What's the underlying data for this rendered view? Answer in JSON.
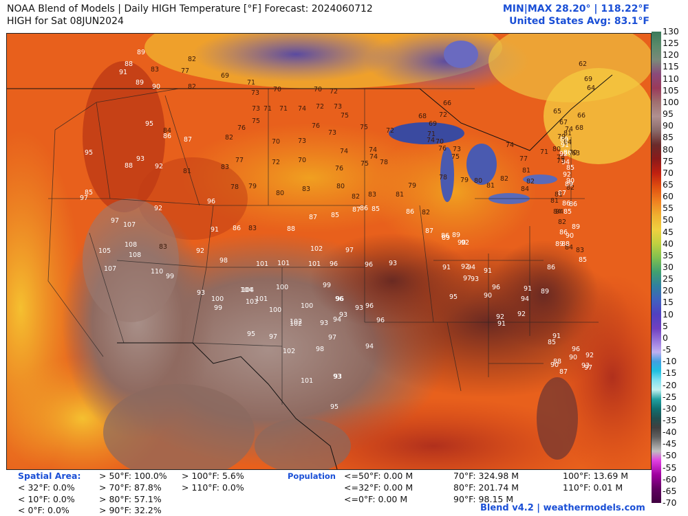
{
  "header": {
    "title": "NOAA Blend of Models | Daily HIGH Temperature [°F] Forecast: 2024060712",
    "subtitle": "HIGH for Sat 08JUN2024",
    "minmax": "MIN|MAX 28.20°  |  118.22°F",
    "us_avg": "United States Avg: 83.1°F"
  },
  "scale": {
    "ticks": [
      "130",
      "125",
      "120",
      "115",
      "110",
      "105",
      "100",
      "95",
      "90",
      "85",
      "80",
      "75",
      "70",
      "65",
      "60",
      "55",
      "50",
      "45",
      "40",
      "35",
      "30",
      "25",
      "20",
      "15",
      "10",
      "5",
      "0",
      "-5",
      "-10",
      "-15",
      "-20",
      "-25",
      "-30",
      "-35",
      "-40",
      "-45",
      "-50",
      "-55",
      "-60",
      "-65",
      "-70"
    ]
  },
  "spatial": {
    "label": "Spatial Area:",
    "col1": [
      "< 32°F: 0.0%",
      "< 10°F: 0.0%",
      "< 0°F: 0.0%"
    ],
    "col2": [
      "> 50°F: 100.0%",
      "> 70°F: 87.8%",
      "> 80°F: 57.1%",
      "> 90°F: 32.2%"
    ],
    "col3": [
      "> 100°F: 5.6%",
      "> 110°F: 0.0%"
    ]
  },
  "population": {
    "label": "Population",
    "col1": [
      "<=50°F: 0.00 M",
      "<=32°F: 0.00 M",
      "<=0°F: 0.00 M"
    ],
    "col2": [
      "70°F: 324.98 M",
      "80°F: 201.74 M",
      "90°F: 98.15 M"
    ],
    "col3": [
      "100°F: 13.69 M",
      "110°F: 0.01 M"
    ]
  },
  "footer": "Blend v4.2 | weathermodels.com",
  "map_points": [
    {
      "v": "89"
    },
    {
      "v": "88"
    },
    {
      "v": "83"
    },
    {
      "v": "77"
    },
    {
      "v": "82"
    },
    {
      "v": "91"
    },
    {
      "v": "89"
    },
    {
      "v": "90"
    },
    {
      "v": "82"
    },
    {
      "v": "69"
    },
    {
      "v": "71"
    },
    {
      "v": "70"
    },
    {
      "v": "70"
    },
    {
      "v": "72"
    },
    {
      "v": "71"
    },
    {
      "v": "73"
    },
    {
      "v": "73"
    },
    {
      "v": "71"
    },
    {
      "v": "74"
    },
    {
      "v": "72"
    },
    {
      "v": "73"
    },
    {
      "v": "75"
    },
    {
      "v": "95"
    },
    {
      "v": "84"
    },
    {
      "v": "87"
    },
    {
      "v": "86"
    },
    {
      "v": "76"
    },
    {
      "v": "82"
    },
    {
      "v": "75"
    },
    {
      "v": "76"
    },
    {
      "v": "73"
    },
    {
      "v": "70"
    },
    {
      "v": "73"
    },
    {
      "v": "74"
    },
    {
      "v": "75"
    },
    {
      "v": "74"
    },
    {
      "v": "72"
    },
    {
      "v": "95"
    },
    {
      "v": "93"
    },
    {
      "v": "92"
    },
    {
      "v": "88"
    },
    {
      "v": "81"
    },
    {
      "v": "83"
    },
    {
      "v": "77"
    },
    {
      "v": "72"
    },
    {
      "v": "70"
    },
    {
      "v": "74"
    },
    {
      "v": "76"
    },
    {
      "v": "75"
    },
    {
      "v": "78"
    },
    {
      "v": "97"
    },
    {
      "v": "97"
    },
    {
      "v": "85"
    },
    {
      "v": "92"
    },
    {
      "v": "96"
    },
    {
      "v": "78"
    },
    {
      "v": "79"
    },
    {
      "v": "80"
    },
    {
      "v": "83"
    },
    {
      "v": "80"
    },
    {
      "v": "82"
    },
    {
      "v": "83"
    },
    {
      "v": "81"
    },
    {
      "v": "79"
    },
    {
      "v": "107"
    },
    {
      "v": "108"
    },
    {
      "v": "83"
    },
    {
      "v": "91"
    },
    {
      "v": "86"
    },
    {
      "v": "83"
    },
    {
      "v": "88"
    },
    {
      "v": "87"
    },
    {
      "v": "85"
    },
    {
      "v": "86"
    },
    {
      "v": "105"
    },
    {
      "v": "107"
    },
    {
      "v": "108"
    },
    {
      "v": "110"
    },
    {
      "v": "99"
    },
    {
      "v": "92"
    },
    {
      "v": "98"
    },
    {
      "v": "101"
    },
    {
      "v": "101"
    },
    {
      "v": "101"
    },
    {
      "v": "96"
    },
    {
      "v": "102"
    },
    {
      "v": "97"
    },
    {
      "v": "96"
    },
    {
      "v": "93"
    },
    {
      "v": "104"
    },
    {
      "v": "93"
    },
    {
      "v": "100"
    },
    {
      "v": "104"
    },
    {
      "v": "100"
    },
    {
      "v": "99"
    },
    {
      "v": "93"
    },
    {
      "v": "93"
    },
    {
      "v": "96"
    },
    {
      "v": "99"
    },
    {
      "v": "103"
    },
    {
      "v": "101"
    },
    {
      "v": "100"
    },
    {
      "v": "96"
    },
    {
      "v": "93"
    },
    {
      "v": "96"
    },
    {
      "v": "102"
    },
    {
      "v": "100"
    },
    {
      "v": "102"
    },
    {
      "v": "94"
    },
    {
      "v": "96"
    },
    {
      "v": "95"
    },
    {
      "v": "97"
    },
    {
      "v": "102"
    },
    {
      "v": "97"
    },
    {
      "v": "98"
    },
    {
      "v": "94"
    },
    {
      "v": "93"
    },
    {
      "v": "101"
    },
    {
      "v": "93"
    },
    {
      "v": "95"
    },
    {
      "v": "87"
    },
    {
      "v": "85"
    },
    {
      "v": "86"
    },
    {
      "v": "82"
    },
    {
      "v": "87"
    },
    {
      "v": "86"
    },
    {
      "v": "89"
    },
    {
      "v": "90"
    },
    {
      "v": "89"
    },
    {
      "v": "92"
    },
    {
      "v": "91"
    },
    {
      "v": "92"
    },
    {
      "v": "91"
    },
    {
      "v": "94"
    },
    {
      "v": "93"
    },
    {
      "v": "95"
    },
    {
      "v": "90"
    },
    {
      "v": "96"
    },
    {
      "v": "97"
    },
    {
      "v": "94"
    },
    {
      "v": "92"
    },
    {
      "v": "91"
    },
    {
      "v": "92"
    },
    {
      "v": "91"
    },
    {
      "v": "89"
    },
    {
      "v": "86"
    },
    {
      "v": "84"
    },
    {
      "v": "89"
    },
    {
      "v": "90"
    },
    {
      "v": "89"
    },
    {
      "v": "86"
    },
    {
      "v": "84"
    },
    {
      "v": "81"
    },
    {
      "v": "82"
    },
    {
      "v": "85"
    },
    {
      "v": "86"
    },
    {
      "v": "84"
    },
    {
      "v": "81"
    },
    {
      "v": "80"
    },
    {
      "v": "78"
    },
    {
      "v": "82"
    },
    {
      "v": "85"
    },
    {
      "v": "86"
    },
    {
      "v": "87"
    },
    {
      "v": "89"
    },
    {
      "v": "90"
    },
    {
      "v": "92"
    },
    {
      "v": "94"
    },
    {
      "v": "92"
    },
    {
      "v": "91"
    },
    {
      "v": "89"
    },
    {
      "v": "66"
    },
    {
      "v": "68"
    },
    {
      "v": "72"
    },
    {
      "v": "69"
    },
    {
      "v": "71"
    },
    {
      "v": "74"
    },
    {
      "v": "70"
    },
    {
      "v": "76"
    },
    {
      "v": "73"
    },
    {
      "v": "75"
    },
    {
      "v": "78"
    },
    {
      "v": "79"
    },
    {
      "v": "80"
    },
    {
      "v": "81"
    },
    {
      "v": "82"
    },
    {
      "v": "84"
    },
    {
      "v": "82"
    },
    {
      "v": "81"
    },
    {
      "v": "77"
    },
    {
      "v": "74"
    },
    {
      "v": "71"
    },
    {
      "v": "73"
    },
    {
      "v": "70"
    },
    {
      "v": "63"
    },
    {
      "v": "67"
    },
    {
      "v": "65"
    },
    {
      "v": "69"
    },
    {
      "v": "62"
    },
    {
      "v": "64"
    },
    {
      "v": "66"
    },
    {
      "v": "68"
    },
    {
      "v": "74"
    },
    {
      "v": "79"
    },
    {
      "v": "81"
    },
    {
      "v": "84"
    },
    {
      "v": "86"
    },
    {
      "v": "88"
    },
    {
      "v": "83"
    },
    {
      "v": "85"
    },
    {
      "v": "92"
    },
    {
      "v": "90"
    },
    {
      "v": "96"
    },
    {
      "v": "97"
    },
    {
      "v": "93"
    },
    {
      "v": "87"
    },
    {
      "v": "90"
    },
    {
      "v": "88"
    },
    {
      "v": "91"
    },
    {
      "v": "85"
    }
  ]
}
